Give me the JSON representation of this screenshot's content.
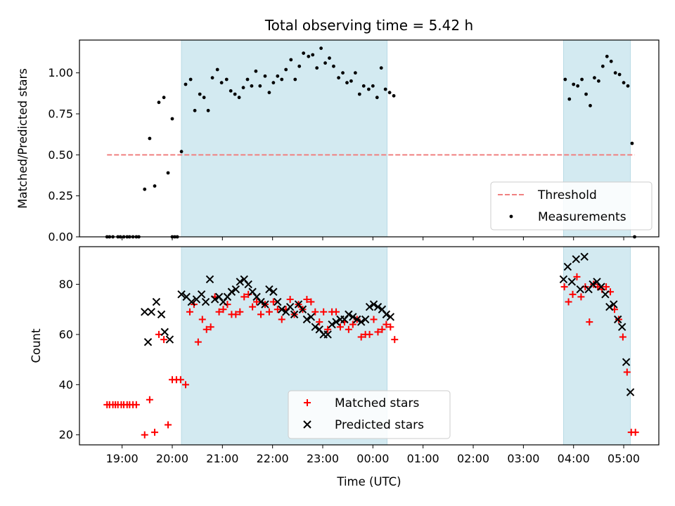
{
  "chart_data": [
    {
      "type": "scatter",
      "title": "Total observing time = 5.42 h",
      "ylabel": "Matched/Predicted stars",
      "xlim": [
        "18:09",
        "05:42"
      ],
      "ylim": [
        0,
        1.2
      ],
      "yticks": [
        "0.00",
        "0.25",
        "0.50",
        "0.75",
        "1.00"
      ],
      "xticks": [],
      "highlight_intervals": [
        [
          "20:11",
          "00:17"
        ],
        [
          "03:48",
          "05:08"
        ]
      ],
      "highlight_color": "#d3eaf1",
      "threshold": {
        "name": "Threshold",
        "value": 0.5,
        "x_start": "18:42",
        "x_end": "05:13",
        "color": "#f08080",
        "style": "dashed"
      },
      "legend_placement": "lower-right",
      "series": [
        {
          "name": "Measurements",
          "marker": "dot",
          "color": "#000000",
          "points": [
            [
              "18:42",
              0
            ],
            [
              "18:45",
              0
            ],
            [
              "18:49",
              0
            ],
            [
              "18:55",
              0
            ],
            [
              "18:58",
              0
            ],
            [
              "19:02",
              0
            ],
            [
              "19:06",
              0
            ],
            [
              "19:09",
              0
            ],
            [
              "19:13",
              0
            ],
            [
              "19:17",
              0
            ],
            [
              "19:20",
              0
            ],
            [
              "19:27",
              0.29
            ],
            [
              "19:33",
              0.6
            ],
            [
              "19:39",
              0.31
            ],
            [
              "19:44",
              0.82
            ],
            [
              "19:50",
              0.85
            ],
            [
              "19:55",
              0.39
            ],
            [
              "20:00",
              0.72
            ],
            [
              "20:00",
              0
            ],
            [
              "20:03",
              0
            ],
            [
              "20:06",
              0
            ],
            [
              "20:11",
              0.52
            ],
            [
              "20:16",
              0.93
            ],
            [
              "20:22",
              0.96
            ],
            [
              "20:27",
              0.77
            ],
            [
              "20:33",
              0.87
            ],
            [
              "20:38",
              0.85
            ],
            [
              "20:43",
              0.77
            ],
            [
              "20:48",
              0.97
            ],
            [
              "20:54",
              1.02
            ],
            [
              "20:59",
              0.94
            ],
            [
              "21:05",
              0.96
            ],
            [
              "21:10",
              0.89
            ],
            [
              "21:15",
              0.87
            ],
            [
              "21:20",
              0.85
            ],
            [
              "21:25",
              0.91
            ],
            [
              "21:30",
              0.96
            ],
            [
              "21:35",
              0.92
            ],
            [
              "21:40",
              1.01
            ],
            [
              "21:45",
              0.92
            ],
            [
              "21:51",
              0.98
            ],
            [
              "21:56",
              0.88
            ],
            [
              "22:01",
              0.94
            ],
            [
              "22:06",
              0.98
            ],
            [
              "22:11",
              0.96
            ],
            [
              "22:16",
              1.02
            ],
            [
              "22:22",
              1.08
            ],
            [
              "22:27",
              0.96
            ],
            [
              "22:32",
              1.04
            ],
            [
              "22:37",
              1.12
            ],
            [
              "22:43",
              1.1
            ],
            [
              "22:48",
              1.11
            ],
            [
              "22:53",
              1.03
            ],
            [
              "22:58",
              1.15
            ],
            [
              "23:03",
              1.06
            ],
            [
              "23:08",
              1.09
            ],
            [
              "23:13",
              1.04
            ],
            [
              "23:19",
              0.97
            ],
            [
              "23:24",
              1.0
            ],
            [
              "23:29",
              0.94
            ],
            [
              "23:34",
              0.95
            ],
            [
              "23:39",
              1.0
            ],
            [
              "23:44",
              0.87
            ],
            [
              "23:49",
              0.92
            ],
            [
              "23:55",
              0.9
            ],
            [
              "00:00",
              0.92
            ],
            [
              "00:05",
              0.85
            ],
            [
              "00:10",
              1.03
            ],
            [
              "00:15",
              0.9
            ],
            [
              "00:20",
              0.88
            ],
            [
              "00:25",
              0.86
            ],
            [
              "03:50",
              0.96
            ],
            [
              "03:55",
              0.84
            ],
            [
              "04:00",
              0.93
            ],
            [
              "04:05",
              0.92
            ],
            [
              "04:10",
              0.96
            ],
            [
              "04:15",
              0.87
            ],
            [
              "04:20",
              0.8
            ],
            [
              "04:25",
              0.97
            ],
            [
              "04:30",
              0.95
            ],
            [
              "04:35",
              1.04
            ],
            [
              "04:40",
              1.1
            ],
            [
              "04:45",
              1.07
            ],
            [
              "04:50",
              1.0
            ],
            [
              "04:55",
              0.99
            ],
            [
              "05:00",
              0.94
            ],
            [
              "05:05",
              0.92
            ],
            [
              "05:10",
              0.57
            ],
            [
              "05:13",
              0
            ]
          ]
        }
      ]
    },
    {
      "type": "scatter",
      "title": "",
      "xlabel": "Time (UTC)",
      "ylabel": "Count",
      "xlim": [
        "18:09",
        "05:42"
      ],
      "ylim": [
        16,
        95
      ],
      "yticks": [
        "20",
        "40",
        "60",
        "80"
      ],
      "xticks": [
        "19:00",
        "20:00",
        "21:00",
        "22:00",
        "23:00",
        "00:00",
        "01:00",
        "02:00",
        "03:00",
        "04:00",
        "05:00"
      ],
      "highlight_intervals": [
        [
          "20:11",
          "00:17"
        ],
        [
          "03:48",
          "05:08"
        ]
      ],
      "highlight_color": "#d3eaf1",
      "legend_placement": "lower-center",
      "series": [
        {
          "name": "Matched stars",
          "marker": "plus",
          "color": "#ff0000",
          "points": [
            [
              "18:42",
              32
            ],
            [
              "18:45",
              32
            ],
            [
              "18:49",
              32
            ],
            [
              "18:52",
              32
            ],
            [
              "18:55",
              32
            ],
            [
              "18:59",
              32
            ],
            [
              "19:02",
              32
            ],
            [
              "19:06",
              32
            ],
            [
              "19:09",
              32
            ],
            [
              "19:13",
              32
            ],
            [
              "19:17",
              32
            ],
            [
              "19:27",
              20
            ],
            [
              "19:33",
              34
            ],
            [
              "19:39",
              21
            ],
            [
              "19:44",
              60
            ],
            [
              "19:50",
              58
            ],
            [
              "19:55",
              24
            ],
            [
              "20:00",
              42
            ],
            [
              "20:05",
              42
            ],
            [
              "20:10",
              42
            ],
            [
              "20:16",
              40
            ],
            [
              "20:21",
              69
            ],
            [
              "20:26",
              72
            ],
            [
              "20:31",
              57
            ],
            [
              "20:36",
              66
            ],
            [
              "20:41",
              62
            ],
            [
              "20:46",
              63
            ],
            [
              "20:51",
              75
            ],
            [
              "20:56",
              69
            ],
            [
              "21:01",
              70
            ],
            [
              "21:06",
              72
            ],
            [
              "21:11",
              68
            ],
            [
              "21:16",
              68
            ],
            [
              "21:21",
              69
            ],
            [
              "21:26",
              75
            ],
            [
              "21:31",
              76
            ],
            [
              "21:36",
              71
            ],
            [
              "21:41",
              73
            ],
            [
              "21:46",
              68
            ],
            [
              "21:51",
              72
            ],
            [
              "21:56",
              69
            ],
            [
              "22:01",
              73
            ],
            [
              "22:06",
              70
            ],
            [
              "22:11",
              66
            ],
            [
              "22:16",
              70
            ],
            [
              "22:21",
              74
            ],
            [
              "22:26",
              68
            ],
            [
              "22:31",
              72
            ],
            [
              "22:36",
              70
            ],
            [
              "22:41",
              74
            ],
            [
              "22:46",
              73
            ],
            [
              "22:51",
              69
            ],
            [
              "22:56",
              65
            ],
            [
              "23:01",
              69
            ],
            [
              "23:06",
              62
            ],
            [
              "23:11",
              69
            ],
            [
              "23:16",
              69
            ],
            [
              "23:21",
              63
            ],
            [
              "23:26",
              65
            ],
            [
              "23:31",
              62
            ],
            [
              "23:36",
              64
            ],
            [
              "23:41",
              66
            ],
            [
              "23:46",
              59
            ],
            [
              "23:51",
              60
            ],
            [
              "23:56",
              60
            ],
            [
              "00:01",
              66
            ],
            [
              "00:06",
              61
            ],
            [
              "00:11",
              62
            ],
            [
              "00:16",
              64
            ],
            [
              "00:21",
              63
            ],
            [
              "00:26",
              58
            ],
            [
              "03:49",
              79
            ],
            [
              "03:54",
              73
            ],
            [
              "03:59",
              76
            ],
            [
              "04:04",
              83
            ],
            [
              "04:09",
              75
            ],
            [
              "04:14",
              79
            ],
            [
              "04:19",
              65
            ],
            [
              "04:24",
              80
            ],
            [
              "04:29",
              79
            ],
            [
              "04:34",
              78
            ],
            [
              "04:39",
              79
            ],
            [
              "04:44",
              77
            ],
            [
              "04:49",
              70
            ],
            [
              "04:54",
              66
            ],
            [
              "04:59",
              59
            ],
            [
              "05:04",
              45
            ],
            [
              "05:09",
              21
            ],
            [
              "05:14",
              21
            ]
          ]
        },
        {
          "name": "Predicted stars",
          "marker": "x",
          "color": "#000000",
          "points": [
            [
              "19:27",
              69
            ],
            [
              "19:31",
              57
            ],
            [
              "19:35",
              69
            ],
            [
              "19:41",
              73
            ],
            [
              "19:47",
              68
            ],
            [
              "19:51",
              61
            ],
            [
              "19:57",
              58
            ],
            [
              "20:11",
              76
            ],
            [
              "20:17",
              75
            ],
            [
              "20:23",
              73
            ],
            [
              "20:29",
              74
            ],
            [
              "20:35",
              76
            ],
            [
              "20:40",
              73
            ],
            [
              "20:45",
              82
            ],
            [
              "20:51",
              74
            ],
            [
              "20:56",
              75
            ],
            [
              "21:01",
              73
            ],
            [
              "21:06",
              75
            ],
            [
              "21:11",
              77
            ],
            [
              "21:16",
              78
            ],
            [
              "21:21",
              81
            ],
            [
              "21:26",
              82
            ],
            [
              "21:31",
              80
            ],
            [
              "21:36",
              77
            ],
            [
              "21:41",
              75
            ],
            [
              "21:46",
              73
            ],
            [
              "21:51",
              72
            ],
            [
              "21:56",
              78
            ],
            [
              "22:01",
              77
            ],
            [
              "22:06",
              73
            ],
            [
              "22:11",
              70
            ],
            [
              "22:16",
              69
            ],
            [
              "22:21",
              71
            ],
            [
              "22:26",
              68
            ],
            [
              "22:31",
              72
            ],
            [
              "22:36",
              70
            ],
            [
              "22:41",
              66
            ],
            [
              "22:46",
              67
            ],
            [
              "22:51",
              63
            ],
            [
              "22:56",
              62
            ],
            [
              "23:01",
              60
            ],
            [
              "23:06",
              60
            ],
            [
              "23:11",
              64
            ],
            [
              "23:16",
              65
            ],
            [
              "23:21",
              66
            ],
            [
              "23:26",
              66
            ],
            [
              "23:31",
              68
            ],
            [
              "23:36",
              67
            ],
            [
              "23:41",
              66
            ],
            [
              "23:46",
              65
            ],
            [
              "23:51",
              66
            ],
            [
              "23:56",
              71
            ],
            [
              "00:01",
              72
            ],
            [
              "00:06",
              71
            ],
            [
              "00:11",
              70
            ],
            [
              "00:16",
              68
            ],
            [
              "00:21",
              67
            ],
            [
              "03:48",
              82
            ],
            [
              "03:53",
              87
            ],
            [
              "03:58",
              81
            ],
            [
              "04:03",
              90
            ],
            [
              "04:08",
              78
            ],
            [
              "04:13",
              91
            ],
            [
              "04:18",
              78
            ],
            [
              "04:23",
              80
            ],
            [
              "04:28",
              81
            ],
            [
              "04:33",
              79
            ],
            [
              "04:38",
              76
            ],
            [
              "04:43",
              71
            ],
            [
              "04:48",
              72
            ],
            [
              "04:53",
              66
            ],
            [
              "04:58",
              63
            ],
            [
              "05:03",
              49
            ],
            [
              "05:08",
              37
            ]
          ]
        }
      ]
    }
  ]
}
